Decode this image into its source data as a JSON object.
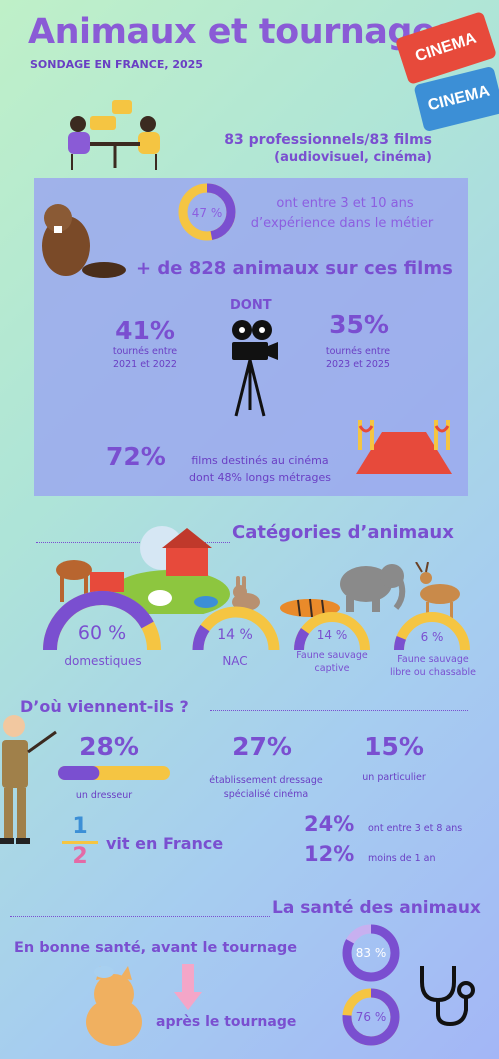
{
  "header": {
    "title": "Animaux et tournages",
    "subtitle": "SONDAGE EN FRANCE, 2025"
  },
  "tickets": [
    {
      "text": "CINEMA"
    },
    {
      "text": "CINEMA"
    }
  ],
  "intro": {
    "line1": "83 professionnels/83 films",
    "line2": "(audiovisuel, cinéma)"
  },
  "experience": {
    "percent_label": "47 %",
    "value": 0.47,
    "text_line1": "ont entre 3 et 10 ans",
    "text_line2": "d’expérience dans le métier"
  },
  "animals_count": "+ de 828 animaux sur ces films",
  "dont": "DONT",
  "stats": [
    {
      "value": "41%",
      "line1": "tournés entre",
      "line2": "2021 et 2022"
    },
    {
      "value": "35%",
      "line1": "tournés entre",
      "line2": "2023 et 2025"
    }
  ],
  "cinema": {
    "value": "72%",
    "line1": "films destinés au cinéma",
    "line2": "dont 48% longs métrages"
  },
  "categories": {
    "heading": "Catégories d’animaux",
    "items": [
      {
        "label_value": "60 %",
        "value": 0.6,
        "name": "domestiques"
      },
      {
        "label_value": "14 %",
        "value": 0.14,
        "name": "NAC"
      },
      {
        "label_value": "14 %",
        "value": 0.14,
        "name_line1": "Faune sauvage",
        "name_line2": "captive"
      },
      {
        "label_value": "6 %",
        "value": 0.06,
        "name_line1": "Faune sauvage",
        "name_line2": "libre ou chassable"
      }
    ]
  },
  "origin": {
    "heading": "D’où viennent-ils ?",
    "items": [
      {
        "value": "28%",
        "label": "un dresseur",
        "fraction": 0.28
      },
      {
        "value": "27%",
        "label_line1": "établissement dressage",
        "label_line2": "spécialisé cinéma"
      },
      {
        "value": "15%",
        "label": "un particulier"
      }
    ],
    "half": {
      "num": "1",
      "den": "2",
      "label": "vit en France"
    },
    "ages": [
      {
        "value": "24%",
        "label": "ont entre 3 et 8 ans"
      },
      {
        "value": "12%",
        "label": "moins de 1 an"
      }
    ]
  },
  "health": {
    "heading": "La santé des animaux",
    "before": {
      "label": "En bonne santé, avant le tournage",
      "percent_label": "83 %",
      "value": 0.83
    },
    "after": {
      "label": "après le tournage",
      "percent_label": "76 %",
      "value": 0.76
    }
  },
  "colors": {
    "purple": "#7a4fd0",
    "yellow": "#f5c542",
    "red": "#e74a3b",
    "blue": "#3c8fd6"
  }
}
